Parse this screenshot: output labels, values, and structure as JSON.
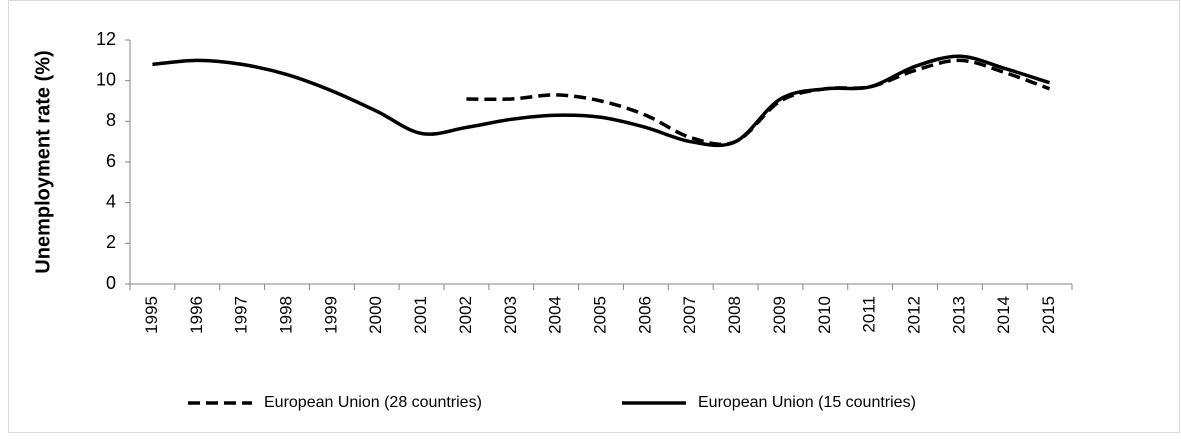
{
  "chart_data": {
    "type": "line",
    "y_label": "Unemployment rate (%)",
    "categories": [
      "1995",
      "1996",
      "1997",
      "1998",
      "1999",
      "2000",
      "2001",
      "2002",
      "2003",
      "2004",
      "2005",
      "2006",
      "2007",
      "2008",
      "2009",
      "2010",
      "2011",
      "2012",
      "2013",
      "2014",
      "2015"
    ],
    "series": [
      {
        "name": "European Union (28 countries)",
        "color": "#000000",
        "style": "dashed",
        "values": [
          null,
          null,
          null,
          null,
          null,
          null,
          null,
          9.1,
          9.1,
          9.3,
          9.0,
          8.3,
          7.2,
          7.0,
          9.0,
          9.6,
          9.7,
          10.5,
          11.0,
          10.4,
          9.6
        ]
      },
      {
        "name": "European Union (15 countries)",
        "color": "#000000",
        "style": "solid",
        "values": [
          10.8,
          11.0,
          10.8,
          10.3,
          9.5,
          8.5,
          7.4,
          7.7,
          8.1,
          8.3,
          8.2,
          7.7,
          7.0,
          7.0,
          9.1,
          9.6,
          9.7,
          10.7,
          11.2,
          10.6,
          9.9
        ]
      }
    ],
    "ylim": [
      0,
      12
    ],
    "yticks": [
      0,
      2,
      4,
      6,
      8,
      10,
      12
    ],
    "grid": false,
    "legend": "bottom"
  }
}
